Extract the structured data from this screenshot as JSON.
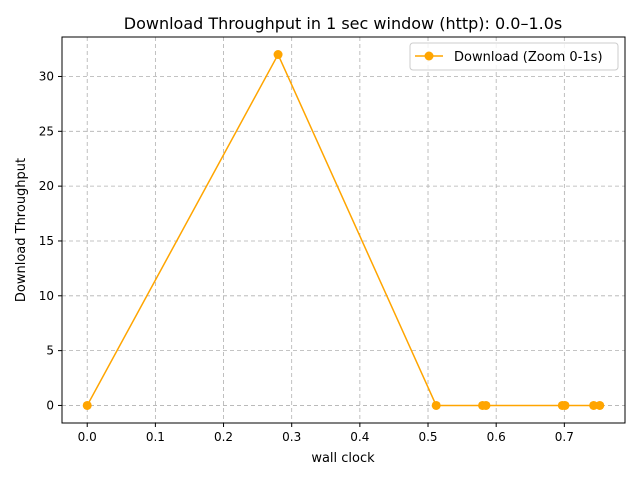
{
  "chart_data": {
    "type": "line",
    "title": "Download Throughput in 1 sec window (http): 0.0–1.0s",
    "xlabel": "wall clock",
    "ylabel": "Download Throughput",
    "xlim": [
      -0.037,
      0.789
    ],
    "ylim": [
      -1.6,
      33.6
    ],
    "xticks": [
      0.0,
      0.1,
      0.2,
      0.3,
      0.4,
      0.5,
      0.6,
      0.7
    ],
    "xtick_labels": [
      "0.0",
      "0.1",
      "0.2",
      "0.3",
      "0.4",
      "0.5",
      "0.6",
      "0.7"
    ],
    "yticks": [
      0,
      5,
      10,
      15,
      20,
      25,
      30
    ],
    "ytick_labels": [
      "0",
      "5",
      "10",
      "15",
      "20",
      "25",
      "30"
    ],
    "grid": true,
    "legend_position": "top-right",
    "series": [
      {
        "name": "Download (Zoom 0-1s)",
        "color": "#FFA500",
        "marker": "circle",
        "x": [
          0.0,
          0.28,
          0.512,
          0.58,
          0.585,
          0.697,
          0.701,
          0.743,
          0.752
        ],
        "y": [
          0,
          32,
          0,
          0,
          0,
          0,
          0,
          0,
          0
        ]
      }
    ]
  }
}
